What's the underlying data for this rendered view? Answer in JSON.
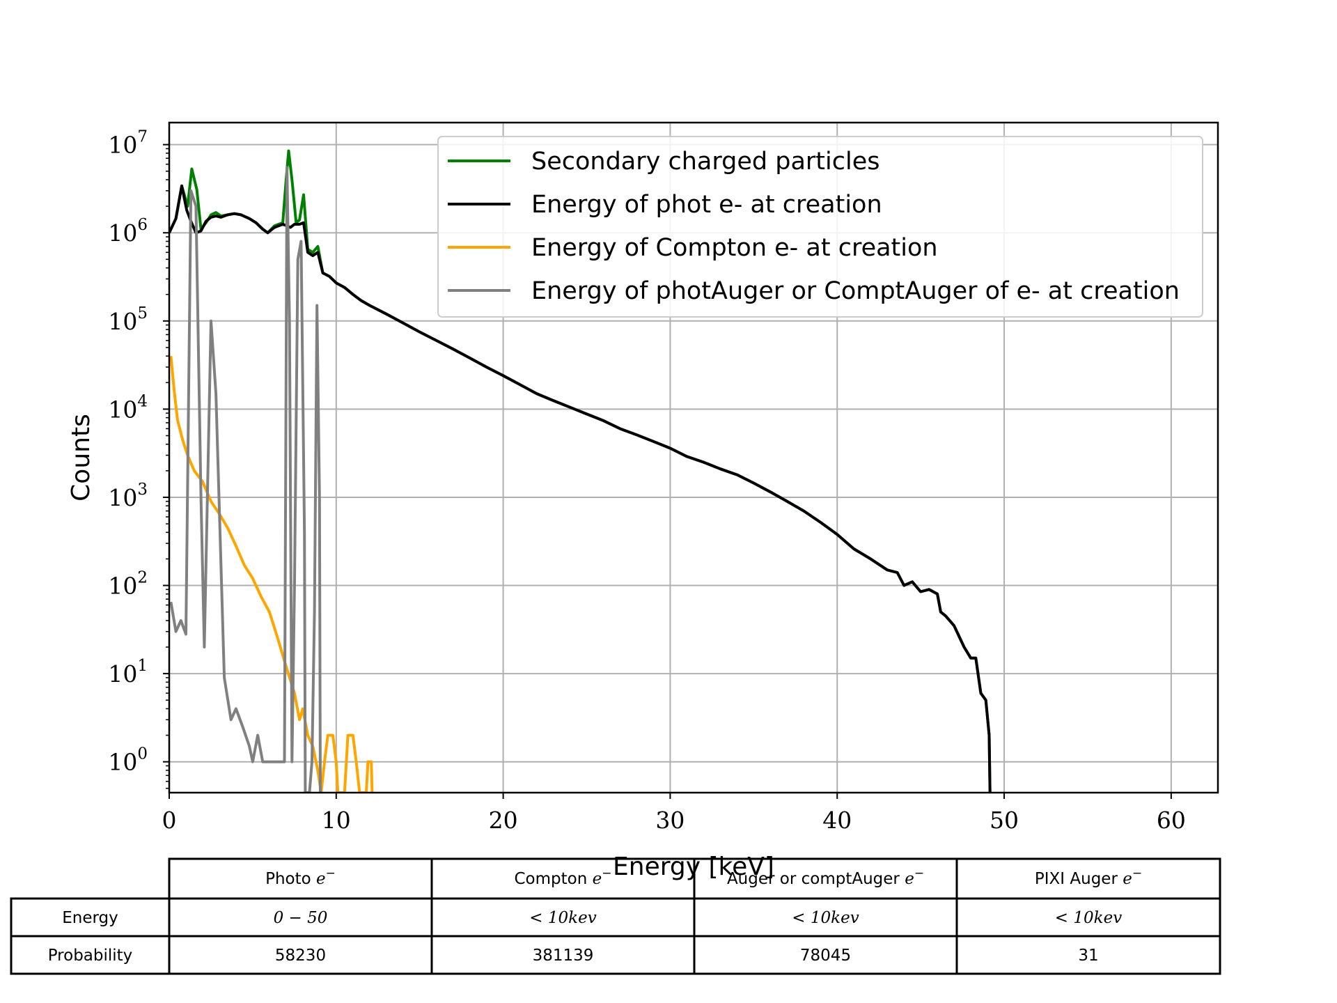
{
  "chart_data": {
    "type": "line",
    "xlabel": "Energy [keV]",
    "ylabel": "Counts",
    "xlim": [
      0,
      62.8
    ],
    "ylim_log10": [
      -0.35,
      7.25
    ],
    "yscale": "log",
    "grid": true,
    "legend_position": "top-right",
    "x_ticks": [
      "0",
      "10",
      "20",
      "30",
      "40",
      "50",
      "60"
    ],
    "y_ticks": [
      {
        "base": "10",
        "exp": "7"
      },
      {
        "base": "10",
        "exp": "6"
      },
      {
        "base": "10",
        "exp": "5"
      },
      {
        "base": "10",
        "exp": "4"
      },
      {
        "base": "10",
        "exp": "3"
      },
      {
        "base": "10",
        "exp": "2"
      },
      {
        "base": "10",
        "exp": "1"
      },
      {
        "base": "10",
        "exp": "0"
      }
    ],
    "series": [
      {
        "name": "Secondary charged particles",
        "color": "#008000",
        "points": [
          [
            0,
            1000000
          ],
          [
            0.4,
            1450000
          ],
          [
            0.75,
            3400000
          ],
          [
            1.1,
            2000000
          ],
          [
            1.35,
            5300000
          ],
          [
            1.65,
            3100000
          ],
          [
            1.9,
            1100000
          ],
          [
            2.2,
            1300000
          ],
          [
            2.5,
            1600000
          ],
          [
            2.8,
            1700000
          ],
          [
            3.1,
            1550000
          ],
          [
            3.5,
            1600000
          ],
          [
            3.9,
            1650000
          ],
          [
            4.3,
            1600000
          ],
          [
            4.8,
            1450000
          ],
          [
            5.2,
            1300000
          ],
          [
            5.6,
            1100000
          ],
          [
            5.9,
            1000000
          ],
          [
            6.3,
            1200000
          ],
          [
            6.8,
            1300000
          ],
          [
            7.0,
            4000000
          ],
          [
            7.15,
            8500000
          ],
          [
            7.35,
            4000000
          ],
          [
            7.6,
            1300000
          ],
          [
            7.8,
            1400000
          ],
          [
            8.05,
            2700000
          ],
          [
            8.3,
            650000
          ],
          [
            8.6,
            600000
          ],
          [
            8.9,
            700000
          ],
          [
            9.2,
            350000
          ],
          [
            9.6,
            320000
          ],
          [
            10.0,
            270000
          ],
          [
            10.5,
            240000
          ],
          [
            11,
            200000
          ],
          [
            11.5,
            170000
          ],
          [
            12,
            150000
          ],
          [
            13,
            120000
          ],
          [
            14,
            95000
          ],
          [
            15,
            75000
          ],
          [
            16,
            60000
          ],
          [
            17,
            48000
          ],
          [
            18,
            38000
          ],
          [
            19,
            30000
          ],
          [
            20,
            24000
          ],
          [
            21,
            19000
          ],
          [
            22,
            15000
          ],
          [
            23,
            12500
          ],
          [
            24,
            10500
          ],
          [
            25,
            8800
          ],
          [
            26,
            7400
          ],
          [
            27,
            6000
          ],
          [
            28,
            5100
          ],
          [
            29,
            4300
          ],
          [
            30,
            3600
          ],
          [
            31,
            2900
          ],
          [
            32,
            2500
          ],
          [
            33,
            2100
          ],
          [
            34,
            1800
          ],
          [
            35,
            1450
          ],
          [
            36,
            1150
          ],
          [
            37,
            900
          ],
          [
            38,
            700
          ],
          [
            39,
            520
          ],
          [
            40,
            380
          ],
          [
            41,
            260
          ],
          [
            42,
            200
          ],
          [
            43,
            150
          ],
          [
            43.6,
            140
          ],
          [
            44,
            100
          ],
          [
            44.5,
            110
          ],
          [
            45,
            85
          ],
          [
            45.5,
            90
          ],
          [
            46,
            80
          ],
          [
            46.2,
            50
          ],
          [
            46.5,
            45
          ],
          [
            47,
            35
          ],
          [
            47.6,
            20
          ],
          [
            48,
            15
          ],
          [
            48.3,
            15
          ],
          [
            48.6,
            6
          ],
          [
            48.9,
            5
          ],
          [
            49.1,
            2
          ],
          [
            49.15,
            0.4
          ]
        ]
      },
      {
        "name": "Energy of phot e- at creation",
        "color": "#000000",
        "points": [
          [
            0,
            1000000
          ],
          [
            0.4,
            1450000
          ],
          [
            0.75,
            3400000
          ],
          [
            1.05,
            1800000
          ],
          [
            1.3,
            1350000
          ],
          [
            1.6,
            1000000
          ],
          [
            1.9,
            1050000
          ],
          [
            2.2,
            1350000
          ],
          [
            2.5,
            1500000
          ],
          [
            2.8,
            1550000
          ],
          [
            3.1,
            1500000
          ],
          [
            3.5,
            1600000
          ],
          [
            3.9,
            1650000
          ],
          [
            4.3,
            1600000
          ],
          [
            4.8,
            1450000
          ],
          [
            5.2,
            1300000
          ],
          [
            5.6,
            1100000
          ],
          [
            5.9,
            1000000
          ],
          [
            6.3,
            1150000
          ],
          [
            6.8,
            1250000
          ],
          [
            7.05,
            1200000
          ],
          [
            7.25,
            1150000
          ],
          [
            7.5,
            1250000
          ],
          [
            7.8,
            1250000
          ],
          [
            8.05,
            1300000
          ],
          [
            8.3,
            600000
          ],
          [
            8.6,
            550000
          ],
          [
            8.9,
            600000
          ],
          [
            9.2,
            350000
          ],
          [
            9.6,
            320000
          ],
          [
            10.0,
            270000
          ],
          [
            10.5,
            240000
          ],
          [
            11,
            200000
          ],
          [
            11.5,
            170000
          ],
          [
            12,
            150000
          ],
          [
            13,
            120000
          ],
          [
            14,
            95000
          ],
          [
            15,
            75000
          ],
          [
            16,
            60000
          ],
          [
            17,
            48000
          ],
          [
            18,
            38000
          ],
          [
            19,
            30000
          ],
          [
            20,
            24000
          ],
          [
            21,
            19000
          ],
          [
            22,
            15000
          ],
          [
            23,
            12500
          ],
          [
            24,
            10500
          ],
          [
            25,
            8800
          ],
          [
            26,
            7400
          ],
          [
            27,
            6000
          ],
          [
            28,
            5100
          ],
          [
            29,
            4300
          ],
          [
            30,
            3600
          ],
          [
            31,
            2900
          ],
          [
            32,
            2500
          ],
          [
            33,
            2100
          ],
          [
            34,
            1800
          ],
          [
            35,
            1450
          ],
          [
            36,
            1150
          ],
          [
            37,
            900
          ],
          [
            38,
            700
          ],
          [
            39,
            520
          ],
          [
            40,
            380
          ],
          [
            41,
            260
          ],
          [
            42,
            200
          ],
          [
            43,
            150
          ],
          [
            43.6,
            140
          ],
          [
            44,
            100
          ],
          [
            44.5,
            110
          ],
          [
            45,
            85
          ],
          [
            45.5,
            90
          ],
          [
            46,
            80
          ],
          [
            46.2,
            50
          ],
          [
            46.5,
            45
          ],
          [
            47,
            35
          ],
          [
            47.6,
            20
          ],
          [
            48,
            15
          ],
          [
            48.3,
            15
          ],
          [
            48.6,
            6
          ],
          [
            48.9,
            5
          ],
          [
            49.1,
            2
          ],
          [
            49.15,
            0.4
          ]
        ]
      },
      {
        "name": "Energy of Compton e- at creation",
        "color": "#ffa500",
        "points": [
          [
            0.1,
            40000
          ],
          [
            0.3,
            16000
          ],
          [
            0.5,
            7500
          ],
          [
            0.8,
            4500
          ],
          [
            1.1,
            3000
          ],
          [
            1.5,
            2000
          ],
          [
            2.0,
            1500
          ],
          [
            2.5,
            900
          ],
          [
            3.0,
            650
          ],
          [
            3.5,
            450
          ],
          [
            4.0,
            280
          ],
          [
            4.5,
            170
          ],
          [
            5.0,
            120
          ],
          [
            5.5,
            75
          ],
          [
            6.0,
            50
          ],
          [
            6.5,
            25
          ],
          [
            7.0,
            12
          ],
          [
            7.5,
            6
          ],
          [
            7.8,
            3
          ],
          [
            8.0,
            4
          ],
          [
            8.3,
            2
          ],
          [
            8.6,
            1.5
          ],
          [
            8.9,
            0.8
          ],
          [
            9.1,
            0.4
          ],
          [
            9.3,
            1
          ],
          [
            9.5,
            2
          ],
          [
            9.8,
            2
          ],
          [
            10.0,
            1
          ],
          [
            10.1,
            0.4
          ],
          [
            10.5,
            0.4
          ],
          [
            10.7,
            2
          ],
          [
            11.0,
            2
          ],
          [
            11.2,
            1
          ],
          [
            11.4,
            0.4
          ],
          [
            11.8,
            0.4
          ],
          [
            11.9,
            1
          ],
          [
            12.1,
            1
          ],
          [
            12.15,
            0.4
          ]
        ]
      },
      {
        "name": "Energy of photAuger or ComptAuger of e- at creation",
        "color": "#808080",
        "points": [
          [
            0.1,
            65
          ],
          [
            0.4,
            30
          ],
          [
            0.7,
            40
          ],
          [
            1.0,
            28
          ],
          [
            1.3,
            3000000
          ],
          [
            1.6,
            2000000
          ],
          [
            1.9,
            1000
          ],
          [
            2.1,
            20
          ],
          [
            2.5,
            100000
          ],
          [
            2.8,
            15000
          ],
          [
            3.3,
            9
          ],
          [
            3.7,
            3
          ],
          [
            4.0,
            4
          ],
          [
            4.4,
            2.5
          ],
          [
            4.8,
            1.5
          ],
          [
            5.0,
            1
          ],
          [
            5.3,
            2
          ],
          [
            5.6,
            1
          ],
          [
            6.0,
            1
          ],
          [
            6.6,
            1
          ],
          [
            6.9,
            1
          ],
          [
            7.05,
            5500000
          ],
          [
            7.2,
            100000
          ],
          [
            7.35,
            1
          ],
          [
            7.5,
            100
          ],
          [
            7.7,
            500000
          ],
          [
            7.9,
            800000
          ],
          [
            8.1,
            400
          ],
          [
            8.15,
            0.4
          ],
          [
            8.4,
            0.4
          ],
          [
            8.55,
            1
          ],
          [
            8.7,
            50
          ],
          [
            8.85,
            150000
          ],
          [
            9.0,
            1000
          ],
          [
            9.05,
            0.4
          ]
        ]
      }
    ]
  },
  "table": {
    "columns": [
      {
        "text": "Photo ",
        "math": "e",
        "sup": "−"
      },
      {
        "text": "Compton ",
        "math": "e",
        "sup": "−"
      },
      {
        "text": "Auger or comptAuger ",
        "math": "e",
        "sup": "−"
      },
      {
        "text": "PIXI Auger ",
        "math": "e",
        "sup": "−"
      }
    ],
    "rows": [
      {
        "label": "Energy",
        "cells": [
          "0 − 50",
          "< 10kev",
          "< 10kev",
          "< 10kev"
        ]
      },
      {
        "label": "Probability",
        "cells": [
          "58230",
          "381139",
          "78045",
          "31"
        ]
      }
    ]
  }
}
